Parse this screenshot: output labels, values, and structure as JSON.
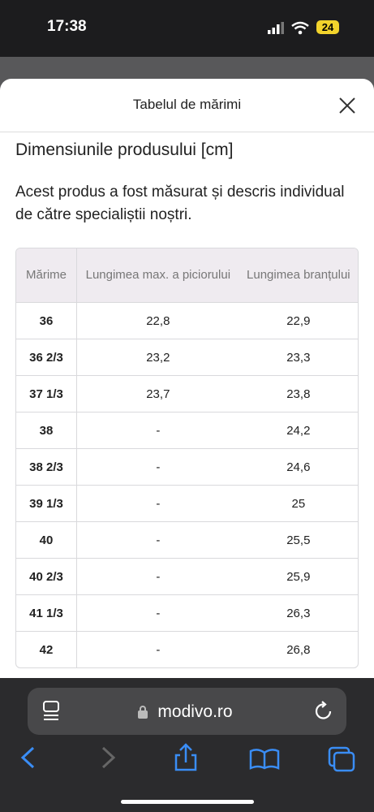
{
  "status_bar": {
    "time": "17:38",
    "battery": "24"
  },
  "modal": {
    "title": "Tabelul de mărimi"
  },
  "content": {
    "heading": "Dimensiunile produsului [cm]",
    "description": "Acest produs a fost măsurat și descris individual de către specialiștii noștri."
  },
  "table": {
    "header": [
      "Mărime",
      "Lungimea max. a piciorului",
      "Lungimea branțului"
    ],
    "rows": [
      [
        "36",
        "22,8",
        "22,9"
      ],
      [
        "36 2/3",
        "23,2",
        "23,3"
      ],
      [
        "37 1/3",
        "23,7",
        "23,8"
      ],
      [
        "38",
        "-",
        "24,2"
      ],
      [
        "38 2/3",
        "-",
        "24,6"
      ],
      [
        "39 1/3",
        "-",
        "25"
      ],
      [
        "40",
        "-",
        "25,5"
      ],
      [
        "40 2/3",
        "-",
        "25,9"
      ],
      [
        "41 1/3",
        "-",
        "26,3"
      ],
      [
        "42",
        "-",
        "26,8"
      ]
    ]
  },
  "browser": {
    "url": "modivo.ro"
  }
}
